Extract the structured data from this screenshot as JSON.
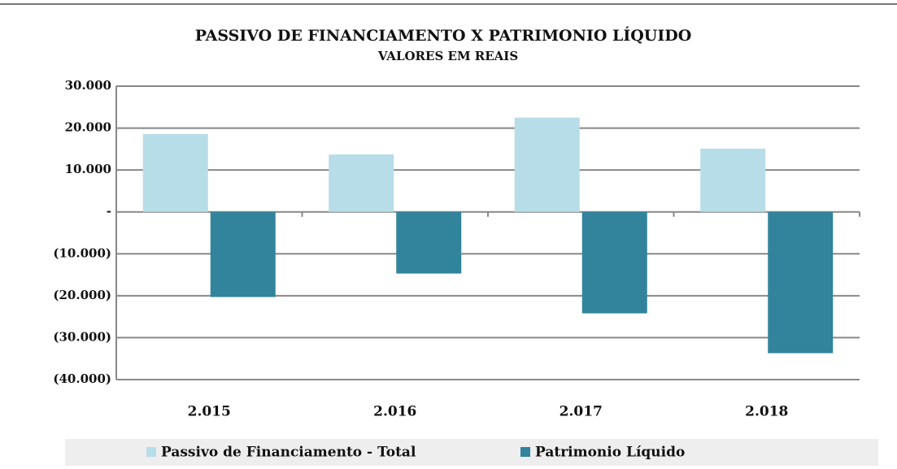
{
  "chart_data": {
    "type": "bar",
    "title": "PASSIVO DE FINANCIAMENTO X PATRIMONIO LÍQUIDO",
    "subtitle": "VALORES EM  REAIS",
    "categories": [
      "2.015",
      "2.016",
      "2.017",
      "2.018"
    ],
    "series": [
      {
        "name": "Passivo de Financiamento - Total",
        "color": "#b7dde8",
        "values": [
          18600,
          13700,
          22500,
          15100
        ]
      },
      {
        "name": "Patrimonio Líquido",
        "color": "#31849b",
        "values": [
          -20300,
          -14700,
          -24200,
          -33700
        ]
      }
    ],
    "ylim": [
      -40000,
      30000
    ],
    "yticks": [
      {
        "value": -40000,
        "label": "(40.000)"
      },
      {
        "value": -30000,
        "label": "(30.000)"
      },
      {
        "value": -20000,
        "label": "(20.000)"
      },
      {
        "value": -10000,
        "label": "(10.000)"
      },
      {
        "value": 0,
        "label": "-"
      },
      {
        "value": 10000,
        "label": "10.000"
      },
      {
        "value": 20000,
        "label": "20.000"
      },
      {
        "value": 30000,
        "label": "30.000"
      }
    ],
    "grid": true
  }
}
